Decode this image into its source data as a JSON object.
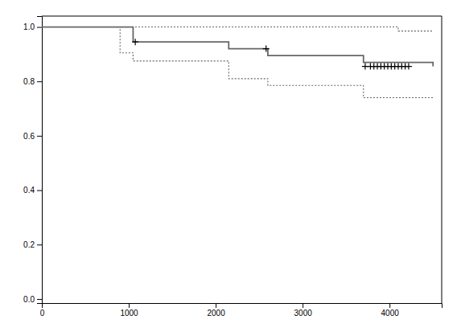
{
  "chart_data": {
    "type": "step",
    "xlim": [
      0,
      4600
    ],
    "ylim": [
      -0.015,
      1.04
    ],
    "xticks": [
      0,
      1000,
      2000,
      3000,
      4000
    ],
    "yticks": [
      {
        "value": 0.0,
        "label": "0.0"
      },
      0.2,
      0.4,
      0.6,
      0.8,
      {
        "value": 1.0,
        "label": "1.0"
      }
    ],
    "grid": false,
    "series": [
      {
        "x": [
          0,
          900,
          900,
          4100,
          4100,
          4500
        ],
        "values": [
          1.0,
          1.0,
          1.0,
          1.0,
          0.985,
          0.985
        ],
        "color": "#666666",
        "line_style": "dotted"
      },
      {
        "x": [
          0,
          900,
          900,
          1050,
          1050,
          2150,
          2150,
          2600,
          2600,
          3700,
          3700,
          4500
        ],
        "values": [
          1.0,
          1.0,
          0.905,
          0.905,
          0.875,
          0.875,
          0.81,
          0.81,
          0.785,
          0.785,
          0.74,
          0.74
        ],
        "color": "#666666",
        "line_style": "dotted"
      },
      {
        "x": [
          0,
          900,
          1050,
          1050,
          2150,
          2150,
          2600,
          2600,
          3700,
          3700,
          4500
        ],
        "values": [
          1.0,
          1.0,
          0.945,
          0.945,
          0.92,
          0.92,
          0.895,
          0.895,
          0.87,
          0.87,
          0.855
        ],
        "color": "#666666",
        "line_style": "solid"
      },
      {
        "type": "scatter",
        "marker": "plus",
        "color": "black",
        "x": [
          1075,
          2580,
          3720,
          3780,
          3820,
          3860,
          3900,
          3940,
          3980,
          4020,
          4060,
          4100,
          4140,
          4180,
          4220
        ],
        "values": [
          0.945,
          0.92,
          0.855,
          0.855,
          0.855,
          0.855,
          0.855,
          0.855,
          0.855,
          0.855,
          0.855,
          0.855,
          0.855,
          0.855,
          0.855
        ]
      }
    ]
  }
}
